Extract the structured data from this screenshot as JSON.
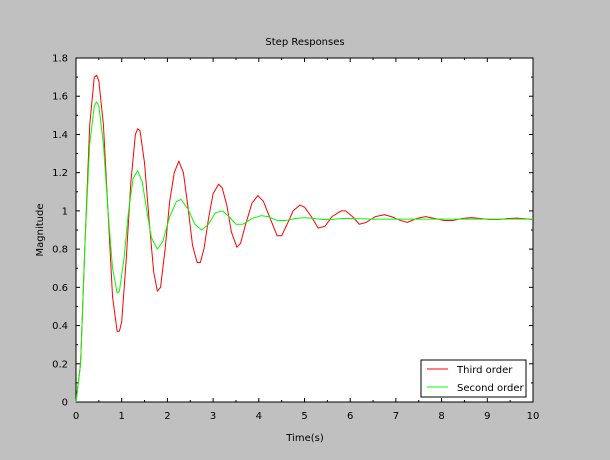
{
  "chart_data": {
    "type": "line",
    "title": "Step Responses",
    "xlabel": "Time(s)",
    "ylabel": "Magnitude",
    "xlim": [
      0,
      10
    ],
    "ylim": [
      0,
      1.8
    ],
    "xticks": [
      "0",
      "1",
      "2",
      "3",
      "4",
      "5",
      "6",
      "7",
      "8",
      "9",
      "10"
    ],
    "yticks": [
      "0",
      "0.2",
      "0.4",
      "0.6",
      "0.8",
      "1",
      "1.2",
      "1.4",
      "1.6",
      "1.8"
    ],
    "grid": false,
    "legend_position": "bottom-right",
    "series": [
      {
        "name": "Third order",
        "color": "#ff0000",
        "points": [
          [
            0,
            0
          ],
          [
            0.1,
            0.2
          ],
          [
            0.2,
            0.85
          ],
          [
            0.3,
            1.45
          ],
          [
            0.4,
            1.7
          ],
          [
            0.45,
            1.71
          ],
          [
            0.5,
            1.68
          ],
          [
            0.6,
            1.45
          ],
          [
            0.7,
            1.0
          ],
          [
            0.8,
            0.55
          ],
          [
            0.9,
            0.37
          ],
          [
            0.95,
            0.37
          ],
          [
            1.0,
            0.42
          ],
          [
            1.1,
            0.75
          ],
          [
            1.2,
            1.15
          ],
          [
            1.3,
            1.4
          ],
          [
            1.35,
            1.43
          ],
          [
            1.4,
            1.42
          ],
          [
            1.5,
            1.25
          ],
          [
            1.6,
            0.95
          ],
          [
            1.7,
            0.68
          ],
          [
            1.78,
            0.58
          ],
          [
            1.85,
            0.6
          ],
          [
            1.95,
            0.8
          ],
          [
            2.05,
            1.05
          ],
          [
            2.15,
            1.2
          ],
          [
            2.25,
            1.26
          ],
          [
            2.35,
            1.2
          ],
          [
            2.45,
            1.02
          ],
          [
            2.55,
            0.82
          ],
          [
            2.65,
            0.73
          ],
          [
            2.72,
            0.73
          ],
          [
            2.8,
            0.8
          ],
          [
            2.9,
            0.96
          ],
          [
            3.0,
            1.09
          ],
          [
            3.12,
            1.14
          ],
          [
            3.2,
            1.12
          ],
          [
            3.3,
            1.03
          ],
          [
            3.4,
            0.89
          ],
          [
            3.52,
            0.81
          ],
          [
            3.6,
            0.83
          ],
          [
            3.7,
            0.92
          ],
          [
            3.85,
            1.04
          ],
          [
            3.98,
            1.08
          ],
          [
            4.1,
            1.05
          ],
          [
            4.25,
            0.96
          ],
          [
            4.4,
            0.87
          ],
          [
            4.5,
            0.87
          ],
          [
            4.62,
            0.93
          ],
          [
            4.75,
            1.0
          ],
          [
            4.9,
            1.03
          ],
          [
            5.0,
            1.02
          ],
          [
            5.15,
            0.97
          ],
          [
            5.3,
            0.91
          ],
          [
            5.45,
            0.92
          ],
          [
            5.6,
            0.97
          ],
          [
            5.8,
            1.0
          ],
          [
            5.9,
            1.0
          ],
          [
            6.05,
            0.97
          ],
          [
            6.2,
            0.93
          ],
          [
            6.35,
            0.94
          ],
          [
            6.55,
            0.97
          ],
          [
            6.75,
            0.98
          ],
          [
            6.9,
            0.97
          ],
          [
            7.1,
            0.95
          ],
          [
            7.25,
            0.94
          ],
          [
            7.45,
            0.96
          ],
          [
            7.65,
            0.97
          ],
          [
            7.85,
            0.96
          ],
          [
            8.05,
            0.95
          ],
          [
            8.25,
            0.95
          ],
          [
            8.45,
            0.96
          ],
          [
            8.65,
            0.965
          ],
          [
            8.85,
            0.96
          ],
          [
            9.05,
            0.955
          ],
          [
            9.25,
            0.955
          ],
          [
            9.45,
            0.96
          ],
          [
            9.65,
            0.962
          ],
          [
            9.85,
            0.958
          ],
          [
            10.0,
            0.955
          ]
        ]
      },
      {
        "name": "Second order",
        "color": "#00ff00",
        "points": [
          [
            0,
            0
          ],
          [
            0.1,
            0.2
          ],
          [
            0.2,
            0.85
          ],
          [
            0.3,
            1.35
          ],
          [
            0.4,
            1.55
          ],
          [
            0.45,
            1.57
          ],
          [
            0.5,
            1.55
          ],
          [
            0.6,
            1.35
          ],
          [
            0.7,
            1.0
          ],
          [
            0.8,
            0.7
          ],
          [
            0.9,
            0.57
          ],
          [
            0.95,
            0.58
          ],
          [
            1.05,
            0.75
          ],
          [
            1.15,
            1.0
          ],
          [
            1.25,
            1.17
          ],
          [
            1.35,
            1.21
          ],
          [
            1.45,
            1.15
          ],
          [
            1.55,
            1.0
          ],
          [
            1.65,
            0.86
          ],
          [
            1.78,
            0.8
          ],
          [
            1.9,
            0.84
          ],
          [
            2.05,
            0.97
          ],
          [
            2.2,
            1.05
          ],
          [
            2.3,
            1.06
          ],
          [
            2.45,
            1.01
          ],
          [
            2.6,
            0.93
          ],
          [
            2.75,
            0.9
          ],
          [
            2.9,
            0.93
          ],
          [
            3.05,
            0.99
          ],
          [
            3.2,
            1.0
          ],
          [
            3.35,
            0.97
          ],
          [
            3.5,
            0.93
          ],
          [
            3.65,
            0.93
          ],
          [
            3.85,
            0.96
          ],
          [
            4.05,
            0.975
          ],
          [
            4.2,
            0.97
          ],
          [
            4.4,
            0.95
          ],
          [
            4.6,
            0.95
          ],
          [
            4.8,
            0.96
          ],
          [
            5.0,
            0.965
          ],
          [
            5.2,
            0.96
          ],
          [
            5.4,
            0.955
          ],
          [
            5.6,
            0.955
          ],
          [
            5.8,
            0.96
          ],
          [
            6.0,
            0.96
          ],
          [
            6.5,
            0.957
          ],
          [
            7.0,
            0.957
          ],
          [
            7.5,
            0.957
          ],
          [
            8.0,
            0.957
          ],
          [
            8.5,
            0.957
          ],
          [
            9.0,
            0.957
          ],
          [
            9.5,
            0.957
          ],
          [
            10.0,
            0.957
          ]
        ]
      }
    ]
  }
}
